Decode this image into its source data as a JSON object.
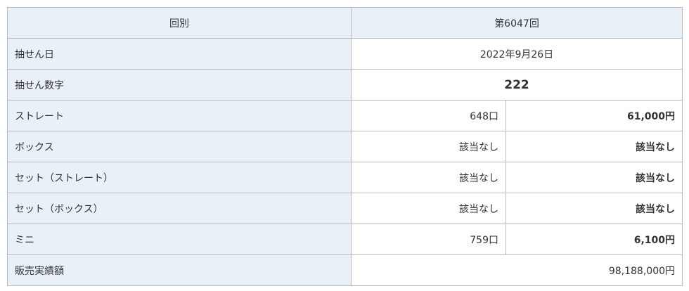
{
  "header": {
    "label": "回別",
    "value": "第6047回"
  },
  "draw_date": {
    "label": "抽せん日",
    "value": "2022年9月26日"
  },
  "winning_number": {
    "label": "抽せん数字",
    "value": "222"
  },
  "prizes": [
    {
      "label": "ストレート",
      "count": "648口",
      "amount": "61,000円"
    },
    {
      "label": "ボックス",
      "count": "該当なし",
      "amount": "該当なし"
    },
    {
      "label": "セット（ストレート）",
      "count": "該当なし",
      "amount": "該当なし"
    },
    {
      "label": "セット（ボックス）",
      "count": "該当なし",
      "amount": "該当なし"
    },
    {
      "label": "ミニ",
      "count": "759口",
      "amount": "6,100円"
    }
  ],
  "sales": {
    "label": "販売実績額",
    "value": "98,188,000円"
  },
  "colors": {
    "label_bg": "#e9f0f8",
    "border": "#bbbbbb"
  }
}
